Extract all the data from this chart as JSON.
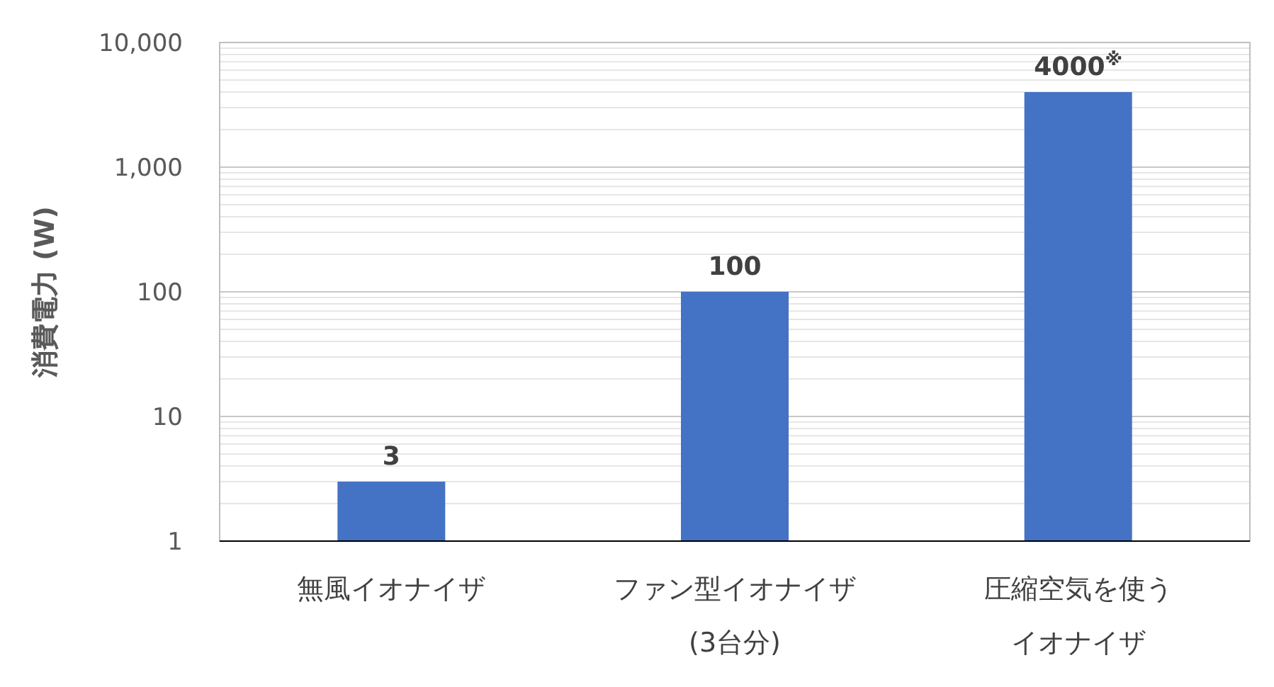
{
  "chart_data": {
    "type": "bar",
    "ylabel": "消費電力 (W)",
    "categories": [
      "無風イオナイザ",
      "ファン型イオナイザ (3台分)",
      "圧縮空気を使うイオナイザ"
    ],
    "values": [
      3,
      100,
      4000
    ],
    "color": "#4472c4",
    "value_labels": [
      "3",
      "100",
      "4000$^{※}$"
    ],
    "log": "y",
    "ylim": [
      1,
      10000
    ],
    "yticks": [
      1,
      10,
      100,
      {
        "value": 1000,
        "label": "1,000"
      },
      {
        "value": 10000,
        "label": "10,000"
      }
    ],
    "grid": "y"
  }
}
